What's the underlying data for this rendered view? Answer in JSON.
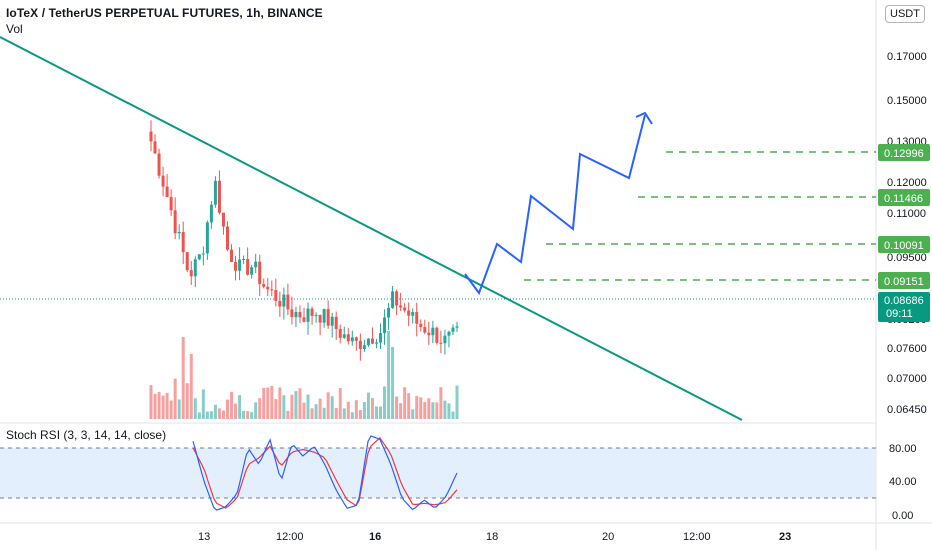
{
  "header": {
    "title": "IoTeX / TetherUS PERPETUAL FUTURES, 1h, BINANCE",
    "volume_label": "Vol",
    "currency": "USDT"
  },
  "rsi": {
    "label": "Stoch RSI (3, 3, 14, 14, close)",
    "ticks": [
      "80.00",
      "40.00",
      "0.00"
    ]
  },
  "colors": {
    "up": "#26a69a",
    "down": "#ef5350",
    "trendline": "#089981",
    "projection": "#2962ff",
    "target": "#4caf50",
    "current_price": "#089981",
    "rsi_k": "#2962ff",
    "rsi_d": "#f23645",
    "rsi_band": "#e3effd"
  },
  "chart_data": {
    "type": "candlestick",
    "symbol": "IoTeX / TetherUS PERPETUAL FUTURES",
    "interval": "1h",
    "exchange": "BINANCE",
    "price_axis_ticks": [
      "0.17000",
      "0.15000",
      "0.13000",
      "0.12000",
      "0.11000",
      "0.09500",
      "0.08200",
      "0.07600",
      "0.07000",
      "0.06450"
    ],
    "time_axis_ticks": [
      "13",
      "12:00",
      "16",
      "18",
      "20",
      "12:00",
      "23"
    ],
    "current_price": "0.08686",
    "countdown": "09:11",
    "target_levels": [
      "0.12996",
      "0.11466",
      "0.10091",
      "0.09151"
    ],
    "price_range": [
      0.06,
      0.185
    ],
    "approx_close_path": [
      0.145,
      0.132,
      0.118,
      0.104,
      0.111,
      0.133,
      0.112,
      0.106,
      0.107,
      0.1,
      0.097,
      0.093,
      0.092,
      0.093,
      0.09,
      0.086,
      0.083,
      0.085,
      0.087,
      0.097,
      0.093,
      0.089,
      0.087,
      0.084,
      0.086
    ],
    "stoch_rsi": {
      "k_approx": [
        88,
        40,
        5,
        10,
        25,
        80,
        60,
        90,
        40,
        85,
        70,
        82,
        60,
        30,
        8,
        12,
        95,
        90,
        60,
        20,
        6,
        18,
        8,
        22,
        50
      ],
      "d_approx": [
        80,
        55,
        15,
        8,
        20,
        60,
        68,
        82,
        58,
        75,
        78,
        75,
        68,
        42,
        18,
        10,
        80,
        92,
        72,
        35,
        12,
        14,
        12,
        15,
        30
      ],
      "upper_band": 80,
      "lower_band": 20
    }
  }
}
